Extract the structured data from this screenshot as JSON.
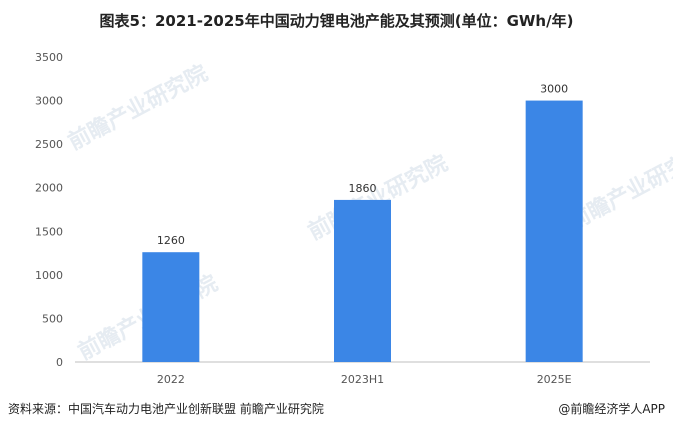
{
  "chart_data": {
    "type": "bar",
    "title": "图表5：2021-2025年中国动力锂电池产能及其预测(单位：GWh/年)",
    "categories": [
      "2022",
      "2023H1",
      "2025E"
    ],
    "values": [
      1260,
      1860,
      3000
    ],
    "yticks": [
      0,
      500,
      1000,
      1500,
      2000,
      2500,
      3000,
      3500
    ],
    "ylim": [
      0,
      3500
    ],
    "xlabel": "",
    "ylabel": "",
    "grid": false,
    "bar_color": "#3b86e6"
  },
  "footer": {
    "source": "资料来源：中国汽车动力电池产业创新联盟 前瞻产业研究院",
    "brand": "@前瞻经济学人APP"
  },
  "watermark": {
    "text": "前瞻产业研究院"
  }
}
